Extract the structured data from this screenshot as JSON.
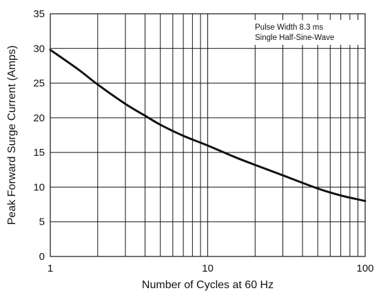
{
  "chart_data": {
    "type": "line",
    "xlabel": "Number of Cycles at 60 Hz",
    "ylabel": "Peak Forward Surge Current (Amps)",
    "x_scale": "log",
    "xlim": [
      1,
      100
    ],
    "ylim": [
      0,
      35
    ],
    "x_ticks": [
      1,
      10,
      100
    ],
    "y_ticks": [
      0,
      5,
      10,
      15,
      20,
      25,
      30,
      35
    ],
    "grid": true,
    "annotations": [
      "Pulse Width 8.3 ms",
      "Single Half-Sine-Wave"
    ],
    "series": [
      {
        "x": [
          1,
          1.5,
          2,
          3,
          4,
          5,
          7,
          10,
          15,
          20,
          30,
          50,
          70,
          100
        ],
        "y": [
          29.8,
          27,
          24.8,
          22,
          20.3,
          19,
          17.4,
          16,
          14.3,
          13.2,
          11.7,
          9.8,
          8.8,
          8
        ],
        "color": "#111111"
      }
    ]
  }
}
